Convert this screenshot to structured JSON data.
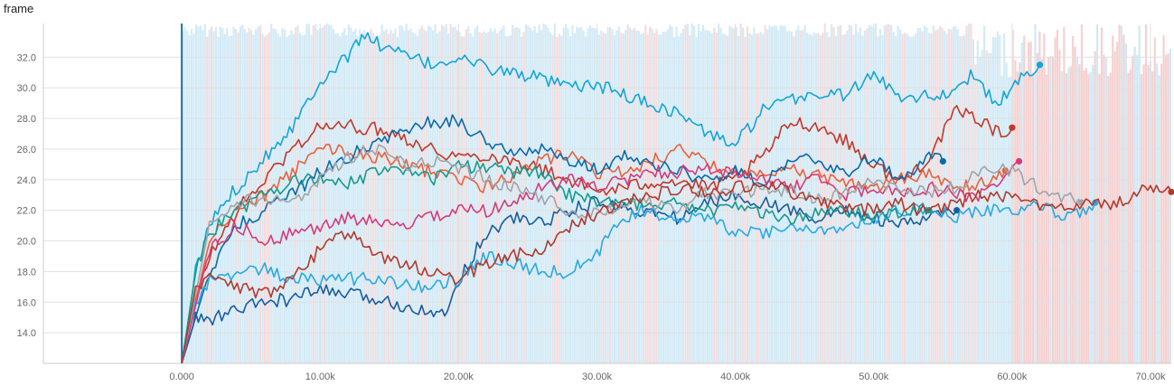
{
  "chart_data": {
    "type": "line",
    "title": "frame",
    "xlabel": "",
    "ylabel": "",
    "xlim": [
      -10000,
      71500
    ],
    "ylim": [
      12.0,
      34.2
    ],
    "x_ticks": [
      0,
      10000,
      20000,
      30000,
      40000,
      50000,
      60000,
      70000
    ],
    "x_tick_labels": [
      "0.000",
      "10.00k",
      "20.00k",
      "30.00k",
      "40.00k",
      "50.00k",
      "60.00k",
      "70.00k"
    ],
    "y_ticks": [
      14,
      16,
      18,
      20,
      22,
      24,
      26,
      28,
      30,
      32
    ],
    "y_tick_labels": [
      "14.0",
      "16.0",
      "18.0",
      "20.0",
      "22.0",
      "24.0",
      "26.0",
      "28.0",
      "30.0",
      "32.0"
    ],
    "grid": true,
    "legend": "none",
    "series": [
      {
        "color": "#12a5d8",
        "x": [
          0,
          1000,
          2000,
          3000,
          5000,
          8000,
          10000,
          12000,
          13000,
          15000,
          18000,
          20000,
          22000,
          25000,
          28000,
          30000,
          33000,
          36000,
          38000,
          40000,
          42000,
          45000,
          48000,
          50000,
          52000,
          55000,
          57000,
          59000,
          60000,
          61500,
          62000
        ],
        "y": [
          12,
          18,
          21,
          22.5,
          24.5,
          27.5,
          30.5,
          32,
          33.5,
          32.5,
          31.5,
          32,
          31.3,
          30.8,
          30,
          30.2,
          29.2,
          28.3,
          27,
          26.3,
          28.5,
          29.5,
          29.6,
          30.8,
          29.5,
          29.5,
          30.8,
          28.8,
          30.2,
          31,
          31.5
        ]
      },
      {
        "color": "#c0392b",
        "x": [
          0,
          1000,
          2000,
          4000,
          6000,
          8000,
          10000,
          12000,
          15000,
          18000,
          20000,
          22000,
          25000,
          28000,
          30000,
          32000,
          35000,
          38000,
          40000,
          42000,
          44000,
          46000,
          48000,
          50000,
          52000,
          54000,
          56000,
          58000,
          59000,
          60000
        ],
        "y": [
          12,
          16,
          19,
          22,
          24,
          26,
          27.5,
          27.5,
          27.2,
          26,
          25.5,
          25.6,
          25,
          24,
          23.2,
          23.5,
          24,
          23.5,
          24,
          25.5,
          27.8,
          27.5,
          26.5,
          25,
          23.8,
          25.5,
          28.5,
          27.8,
          27,
          27.4
        ]
      },
      {
        "color": "#e8613e",
        "x": [
          0,
          2000,
          4000,
          6000,
          8000,
          10000,
          12000,
          14000,
          16000,
          18000,
          20000,
          22000,
          24000,
          26000,
          28000,
          30000,
          32000,
          34000,
          36000,
          38000,
          40000,
          42000,
          44000,
          46000,
          48000,
          50000,
          52000,
          54000,
          56000,
          58000,
          59500
        ],
        "y": [
          12,
          20,
          22,
          23,
          24.5,
          26,
          25.8,
          25.5,
          25,
          24.5,
          24,
          23.5,
          24.2,
          25.2,
          25.8,
          24.5,
          24.5,
          25.2,
          26,
          25,
          24.5,
          24.5,
          24.8,
          24.2,
          23.8,
          23.5,
          24,
          24.5,
          23.5,
          23.8,
          24.6
        ]
      },
      {
        "color": "#0a6aa8",
        "x": [
          0,
          2000,
          4000,
          6000,
          8000,
          10000,
          12000,
          14000,
          16000,
          18000,
          20000,
          22000,
          24000,
          26000,
          28000,
          30000,
          32000,
          34000,
          36000,
          38000,
          40000,
          42000,
          44000,
          46000,
          48000,
          50000,
          52000,
          54000,
          55000
        ],
        "y": [
          12,
          18,
          21,
          22,
          23,
          24.5,
          25.5,
          26.5,
          27,
          27.8,
          27.8,
          26.5,
          25.8,
          26,
          25.2,
          24.8,
          25.5,
          25,
          24.5,
          24,
          24.6,
          23.5,
          25.5,
          25.3,
          24.5,
          25.5,
          24,
          25.5,
          25.2
        ]
      },
      {
        "color": "#1a5c9a",
        "x": [
          0,
          1000,
          2000,
          4000,
          6000,
          8000,
          10000,
          12000,
          14000,
          16000,
          18000,
          19000,
          20000,
          22000,
          24000,
          26000,
          28000,
          30000,
          32000,
          34000,
          36000,
          38000,
          40000,
          42000,
          44000,
          46000,
          48000,
          50000,
          52000,
          54000,
          56000
        ],
        "y": [
          12,
          15,
          14.8,
          15.5,
          16,
          16.2,
          16.8,
          16.5,
          16.2,
          15.8,
          15.5,
          15,
          17.5,
          20.5,
          21.5,
          21.2,
          22,
          22.5,
          22.2,
          21.8,
          21.5,
          22.5,
          23,
          22.5,
          22,
          21.5,
          22,
          21.5,
          21,
          21.5,
          22
        ]
      },
      {
        "color": "#29a9e0",
        "x": [
          0,
          1000,
          2000,
          4000,
          6000,
          8000,
          10000,
          12000,
          14000,
          16000,
          18000,
          20000,
          22000,
          24000,
          26000,
          28000,
          29000,
          30000,
          31000,
          33000,
          36000,
          38000,
          40000,
          42000,
          44000,
          46000,
          48000,
          50000,
          52000,
          54000,
          56000,
          58000,
          60000,
          62000,
          64000,
          66000
        ],
        "y": [
          12,
          16,
          17.5,
          18,
          18.2,
          17.5,
          17.5,
          17.5,
          17.6,
          17.2,
          17,
          17.5,
          19,
          18.5,
          18,
          18,
          18.5,
          19,
          20.5,
          22,
          21.5,
          21.5,
          20.5,
          20.5,
          21,
          20.5,
          21,
          21.5,
          22,
          22,
          21.5,
          22,
          22,
          22.2,
          21.5,
          22.5
        ]
      },
      {
        "color": "#17998d",
        "x": [
          0,
          1000,
          2000,
          4000,
          6000,
          8000,
          10000,
          12000,
          14000,
          16000,
          18000,
          20000,
          22000,
          24000,
          26000,
          28000,
          30000,
          32000,
          34000,
          36000,
          38000,
          40000,
          42000,
          44000,
          46000,
          48000,
          50000,
          52000,
          54000
        ],
        "y": [
          12,
          18,
          20.5,
          22,
          23,
          23.8,
          24.2,
          23.8,
          24.5,
          24.5,
          24,
          24.8,
          24.8,
          24.5,
          24.5,
          23,
          22.5,
          22.8,
          22,
          22.5,
          22,
          22.2,
          21.8,
          21.5,
          22,
          22,
          21.5,
          22,
          22
        ]
      },
      {
        "color": "#d63b79",
        "x": [
          0,
          2000,
          4000,
          6000,
          8000,
          10000,
          12000,
          14000,
          16000,
          18000,
          20000,
          22000,
          24000,
          26000,
          28000,
          30000,
          32000,
          34000,
          36000,
          38000,
          40000,
          42000,
          44000,
          46000,
          48000,
          50000,
          52000,
          54000,
          56000,
          58000,
          60000,
          60500
        ],
        "y": [
          12,
          19.5,
          21,
          20,
          20.5,
          21,
          21.5,
          21.2,
          21,
          21.5,
          22,
          22,
          22.5,
          23.5,
          24,
          23.5,
          24,
          24.5,
          24.5,
          24.8,
          24.2,
          24,
          23.5,
          24,
          23,
          23.5,
          23,
          23.5,
          23,
          23,
          24.5,
          25.2
        ]
      },
      {
        "color": "#a0a4a8",
        "x": [
          0,
          2000,
          4000,
          6000,
          8000,
          10000,
          12000,
          14000,
          16000,
          18000,
          20000,
          22000,
          24000,
          26000,
          28000,
          30000,
          32000,
          34000,
          36000,
          38000,
          40000,
          42000,
          44000,
          46000,
          48000,
          50000,
          52000,
          54000,
          56000,
          58000,
          60000,
          62000,
          64000,
          65000
        ],
        "y": [
          12,
          21,
          22.5,
          22.8,
          22.5,
          24,
          25.5,
          26,
          25,
          25.2,
          24.8,
          24,
          23.5,
          22.8,
          22,
          21.8,
          22.2,
          22.5,
          22,
          23.2,
          23,
          23.5,
          23.2,
          22.8,
          23,
          24,
          23.5,
          23.2,
          23.5,
          24.8,
          24.5,
          23.5,
          22.8,
          22.5
        ]
      },
      {
        "color": "#b03a2e",
        "x": [
          0,
          1000,
          2000,
          4000,
          6000,
          8000,
          10000,
          12000,
          14000,
          16000,
          18000,
          20000,
          22000,
          24000,
          26000,
          28000,
          30000,
          32000,
          34000,
          36000,
          38000,
          40000,
          42000,
          44000,
          46000,
          48000,
          50000,
          52000,
          54000,
          56000,
          58000,
          60000,
          62000,
          64000,
          66000,
          68000,
          69000,
          70000,
          71500
        ],
        "y": [
          12,
          17,
          17.5,
          17,
          16.5,
          17.5,
          19.5,
          20.5,
          19,
          18.5,
          18,
          17.5,
          18.5,
          19,
          19.5,
          21,
          21.8,
          22.5,
          23,
          23.5,
          23,
          23.5,
          23.8,
          23.2,
          22.5,
          22.2,
          22,
          22.5,
          21.8,
          22.5,
          23,
          22.8,
          22.2,
          22,
          22.5,
          22.5,
          23,
          23.5,
          23.2
        ]
      }
    ]
  }
}
